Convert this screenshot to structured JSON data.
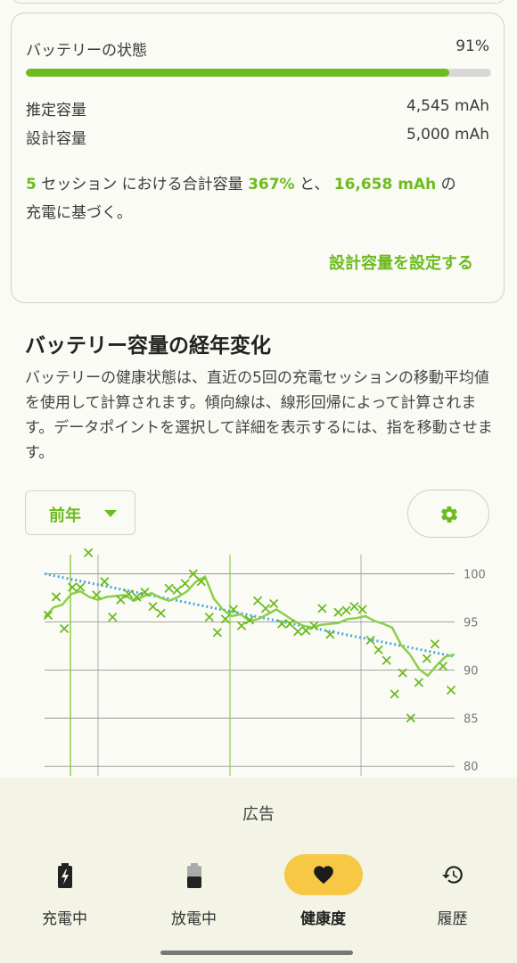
{
  "health_card": {
    "status_label": "バッテリーの状態",
    "status_value": "91%",
    "status_fraction": 0.91,
    "estimated_label": "推定容量",
    "estimated_value": "4,545 mAh",
    "design_label": "設計容量",
    "design_value": "5,000 mAh",
    "summary": {
      "sessions": "5",
      "t1": " セッション における合計容量 ",
      "total_pct": "367%",
      "t2": " と、 ",
      "total_mah": "16,658 mAh",
      "t3": " の",
      "t4": "充電に基づく。"
    },
    "set_design_button": "設計容量を設定する"
  },
  "history": {
    "title": "バッテリー容量の経年変化",
    "description": "バッテリーの健康状態は、直近の5回の充電セッションの移動平均値を使用して計算されます。傾向線は、線形回帰によって計算されます。データポイントを選択して詳細を表示するには、指を移動させます。",
    "period_label": "前年",
    "settings_icon": "gear-icon"
  },
  "chart_data": {
    "type": "scatter",
    "ylim": [
      79,
      102
    ],
    "yticks": [
      "100",
      "95",
      "90",
      "85",
      "80"
    ],
    "points": [
      95.7,
      97.6,
      94.3,
      98.6,
      98.6,
      102.2,
      97.8,
      99.2,
      95.5,
      97.3,
      97.9,
      97.6,
      98.1,
      96.6,
      95.9,
      98.5,
      98.3,
      99.0,
      100.0,
      99.2,
      95.5,
      93.9,
      95.3,
      96.3,
      94.6,
      95.2,
      97.2,
      96.4,
      96.9,
      94.8,
      94.8,
      94.0,
      94.1,
      94.6,
      96.4,
      93.7,
      96.0,
      96.2,
      96.6,
      96.3,
      93.1,
      92.1,
      91.0,
      87.5,
      89.7,
      85.0,
      88.7,
      91.2,
      92.7,
      90.4,
      87.9
    ],
    "moving_average": [
      95.5,
      96.5,
      96.8,
      97.9,
      98.2,
      97.6,
      97.3,
      97.6,
      97.7,
      97.8,
      97.2,
      97.6,
      98.0,
      97.5,
      97.2,
      97.6,
      98.2,
      99.2,
      99.7,
      97.4,
      96.3,
      95.6,
      95.8,
      95.1,
      95.3,
      95.8,
      96.3,
      95.7,
      95.1,
      94.6,
      94.4,
      94.7,
      94.8,
      94.9,
      95.3,
      95.4,
      95.6,
      95.1,
      94.8,
      94.4,
      92.6,
      91.6,
      90.1,
      89.4,
      90.5,
      91.4,
      91.6
    ],
    "trend_start": 100.0,
    "trend_end": 91.4,
    "colors": {
      "points": "#6cbc1f",
      "average": "#8ccf4a",
      "trend": "#4aa8d8"
    }
  },
  "bottom": {
    "ad_label": "広告",
    "nav": [
      {
        "label": "充電中",
        "icon": "battery-charging-icon"
      },
      {
        "label": "放電中",
        "icon": "battery-discharging-icon"
      },
      {
        "label": "健康度",
        "icon": "heart-icon"
      },
      {
        "label": "履歴",
        "icon": "history-icon"
      }
    ],
    "active_index": 2,
    "accent": "#f6c843"
  }
}
